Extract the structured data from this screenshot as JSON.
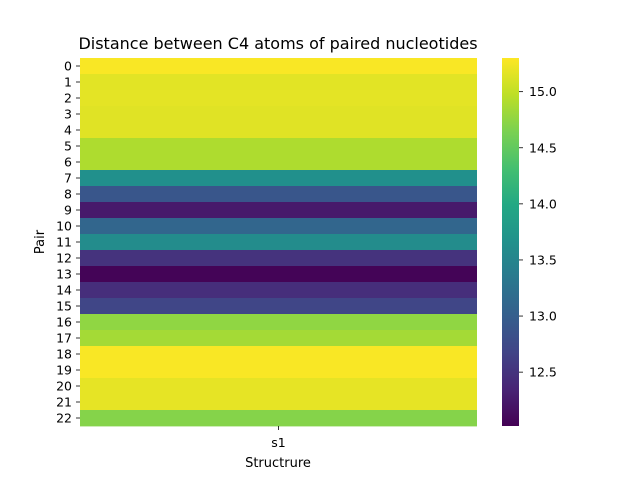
{
  "chart_data": {
    "type": "heatmap",
    "title": "Distance between C4 atoms of paired nucleotides",
    "xlabel": "Structrure",
    "ylabel": "Pair",
    "x_categories": [
      "s1"
    ],
    "y_categories": [
      "0",
      "1",
      "2",
      "3",
      "4",
      "5",
      "6",
      "7",
      "8",
      "9",
      "10",
      "11",
      "12",
      "13",
      "14",
      "15",
      "16",
      "17",
      "18",
      "19",
      "20",
      "21",
      "22"
    ],
    "values": [
      15.28,
      15.16,
      15.17,
      15.15,
      15.15,
      14.9,
      14.9,
      13.65,
      12.9,
      12.25,
      13.1,
      13.6,
      12.5,
      12.05,
      12.45,
      12.7,
      14.75,
      14.85,
      15.28,
      15.28,
      15.18,
      15.18,
      14.7
    ],
    "colorbar": {
      "vmin": 12.02,
      "vmax": 15.3,
      "ticks": [
        12.5,
        13.0,
        13.5,
        14.0,
        14.5,
        15.0
      ],
      "tick_labels": [
        "12.5",
        "13.0",
        "13.5",
        "14.0",
        "14.5",
        "15.0"
      ],
      "colormap": "viridis"
    },
    "grid": false
  }
}
